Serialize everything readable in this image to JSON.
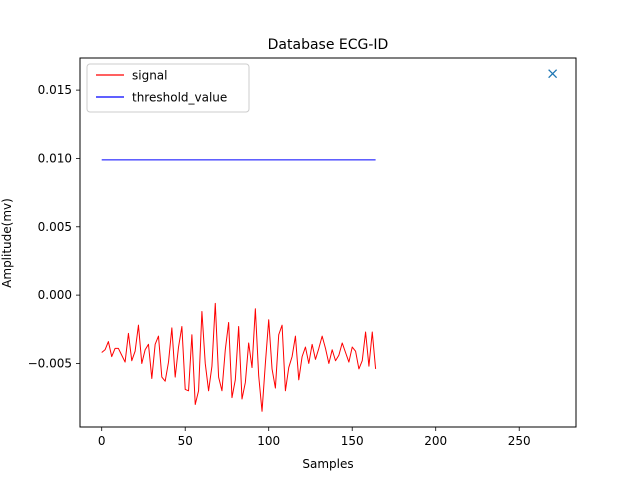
{
  "chart_data": {
    "type": "line",
    "title": "Database ECG-ID",
    "xlabel": "Samples",
    "ylabel": "Amplitude(mv)",
    "xlim": [
      -13,
      284
    ],
    "ylim": [
      -0.00965,
      0.01735
    ],
    "xticks": [
      0,
      50,
      100,
      150,
      200,
      250
    ],
    "yticks": [
      -0.005,
      0.0,
      0.005,
      0.01,
      0.015
    ],
    "xtick_labels": [
      "0",
      "50",
      "100",
      "150",
      "200",
      "250"
    ],
    "ytick_labels": [
      "−0.005",
      "0.000",
      "0.005",
      "0.010",
      "0.015"
    ],
    "grid": false,
    "legend": "upper-left",
    "series": [
      {
        "name": "signal",
        "color": "#ff0000",
        "x": [
          0,
          2,
          4,
          6,
          8,
          10,
          12,
          14,
          16,
          18,
          20,
          22,
          24,
          26,
          28,
          30,
          32,
          34,
          36,
          38,
          40,
          42,
          44,
          46,
          48,
          50,
          52,
          54,
          56,
          58,
          60,
          62,
          64,
          66,
          68,
          70,
          72,
          74,
          76,
          78,
          80,
          82,
          84,
          86,
          88,
          90,
          92,
          94,
          96,
          98,
          100,
          102,
          104,
          106,
          108,
          110,
          112,
          114,
          116,
          118,
          120,
          122,
          124,
          126,
          128,
          130,
          132,
          134,
          136,
          138,
          140,
          142,
          144,
          146,
          148,
          150,
          152,
          154,
          156,
          158,
          160,
          162,
          164
        ],
        "y": [
          -0.0042,
          -0.004,
          -0.0034,
          -0.0045,
          -0.0039,
          -0.0039,
          -0.0044,
          -0.0049,
          -0.0028,
          -0.0048,
          -0.0041,
          -0.0022,
          -0.005,
          -0.004,
          -0.0036,
          -0.0061,
          -0.0036,
          -0.003,
          -0.006,
          -0.0063,
          -0.0049,
          -0.0024,
          -0.006,
          -0.0038,
          -0.0023,
          -0.0069,
          -0.007,
          -0.0029,
          -0.008,
          -0.007,
          -0.0012,
          -0.005,
          -0.007,
          -0.0052,
          -0.0006,
          -0.006,
          -0.007,
          -0.004,
          -0.002,
          -0.0075,
          -0.0062,
          -0.0023,
          -0.0076,
          -0.0064,
          -0.0035,
          -0.0053,
          -0.001,
          -0.0059,
          -0.0085,
          -0.005,
          -0.0018,
          -0.0054,
          -0.0068,
          -0.0029,
          -0.0022,
          -0.007,
          -0.0053,
          -0.0045,
          -0.003,
          -0.0062,
          -0.0045,
          -0.0038,
          -0.005,
          -0.0036,
          -0.0047,
          -0.0039,
          -0.003,
          -0.0039,
          -0.005,
          -0.004,
          -0.0048,
          -0.0044,
          -0.0035,
          -0.0042,
          -0.0049,
          -0.0038,
          -0.0041,
          -0.0054,
          -0.0048,
          -0.0027,
          -0.0052,
          -0.0027,
          -0.0054
        ]
      },
      {
        "name": "threshold_value",
        "color": "#0000ff",
        "x": [
          0,
          164
        ],
        "y": [
          0.0099,
          0.0099
        ]
      }
    ],
    "marker": {
      "shape": "x",
      "color": "#1f77b4",
      "x": 270,
      "y": 0.0162
    }
  }
}
